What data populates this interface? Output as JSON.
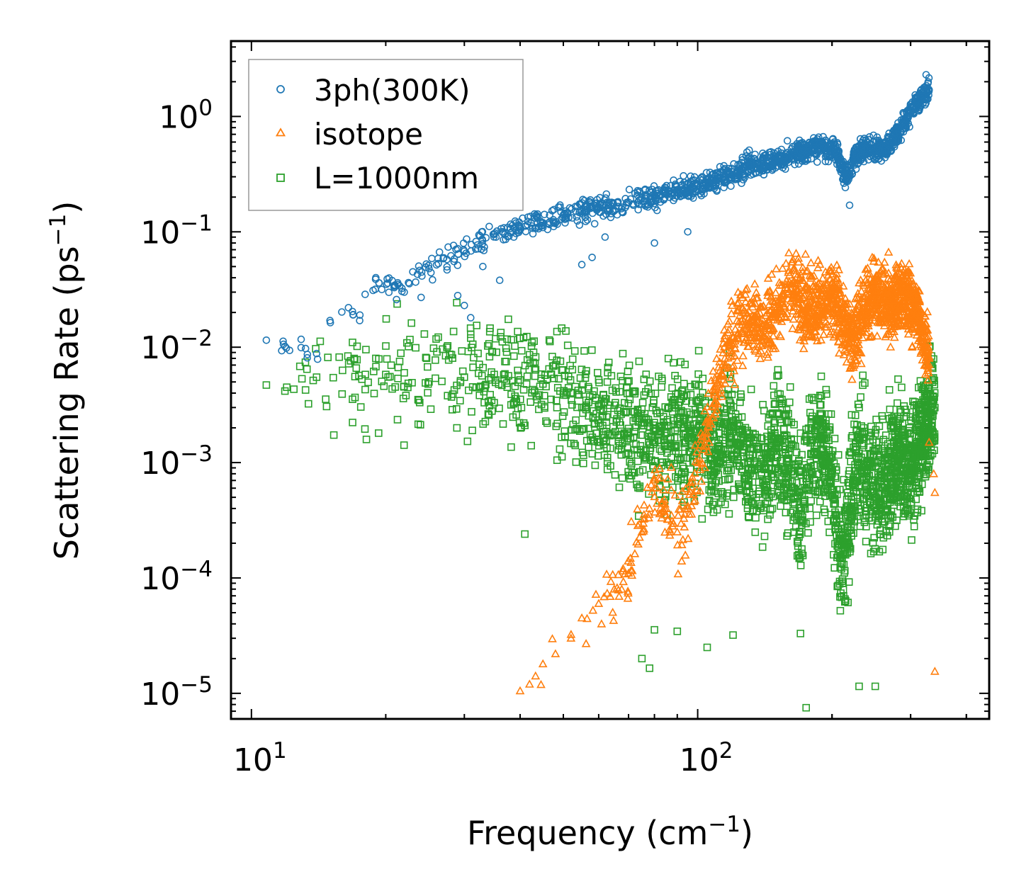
{
  "chart_data": {
    "type": "scatter",
    "xscale": "log",
    "yscale": "log",
    "xlim": [
      9,
      450
    ],
    "ylim": [
      6e-06,
      4.5
    ],
    "xlabel": "Frequency (cm",
    "xlabel_sup": "−1",
    "xlabel_end": ")",
    "ylabel": "Scattering Rate (ps",
    "ylabel_sup": "−1",
    "ylabel_end": ")",
    "x_ticks": [
      {
        "value": 10,
        "base": "10",
        "exp": "1"
      },
      {
        "value": 100,
        "base": "10",
        "exp": "2"
      }
    ],
    "y_ticks": [
      {
        "value": 1,
        "base": "10",
        "exp": "0"
      },
      {
        "value": 0.1,
        "base": "10",
        "exp": "−1"
      },
      {
        "value": 0.01,
        "base": "10",
        "exp": "−2"
      },
      {
        "value": 0.001,
        "base": "10",
        "exp": "−3"
      },
      {
        "value": 0.0001,
        "base": "10",
        "exp": "−4"
      },
      {
        "value": 1e-05,
        "base": "10",
        "exp": "−5"
      }
    ],
    "legend_position": "top-left",
    "series": [
      {
        "name": "3ph(300K)",
        "marker": "circle",
        "color": "#1f77b4",
        "trend": [
          [
            10.8,
            0.0115
          ],
          [
            11.8,
            0.0106
          ],
          [
            14,
            0.0088
          ],
          [
            15,
            0.017
          ],
          [
            16.5,
            0.022
          ],
          [
            17.5,
            0.019
          ],
          [
            19,
            0.04
          ],
          [
            21,
            0.034
          ],
          [
            22,
            0.03
          ],
          [
            23,
            0.045
          ],
          [
            25,
            0.048
          ],
          [
            28,
            0.062
          ],
          [
            30,
            0.068
          ],
          [
            35,
            0.095
          ],
          [
            40,
            0.11
          ],
          [
            45,
            0.12
          ],
          [
            50,
            0.14
          ],
          [
            55,
            0.15
          ],
          [
            60,
            0.16
          ],
          [
            70,
            0.18
          ],
          [
            80,
            0.2
          ],
          [
            90,
            0.23
          ],
          [
            100,
            0.25
          ],
          [
            115,
            0.3
          ],
          [
            130,
            0.37
          ],
          [
            150,
            0.42
          ],
          [
            170,
            0.5
          ],
          [
            190,
            0.55
          ],
          [
            205,
            0.48
          ],
          [
            215,
            0.3
          ],
          [
            225,
            0.45
          ],
          [
            240,
            0.55
          ],
          [
            260,
            0.5
          ],
          [
            280,
            0.7
          ],
          [
            300,
            1.1
          ],
          [
            320,
            1.5
          ],
          [
            330,
            1.7
          ]
        ],
        "outliers": [
          [
            24,
            0.027
          ],
          [
            29,
            0.028
          ],
          [
            30,
            0.023
          ],
          [
            31,
            0.018
          ],
          [
            33,
            0.05
          ],
          [
            36,
            0.038
          ],
          [
            55,
            0.052
          ],
          [
            58,
            0.06
          ],
          [
            62,
            0.09
          ],
          [
            80,
            0.08
          ],
          [
            95,
            0.1
          ],
          [
            219,
            0.17
          ],
          [
            325,
            2.3
          ]
        ]
      },
      {
        "name": "isotope",
        "marker": "triangle",
        "color": "#ff7f0e",
        "trend": [
          [
            40,
            1.05e-05
          ],
          [
            42,
            1.2e-05
          ],
          [
            45,
            1.8e-05
          ],
          [
            48,
            2.2e-05
          ],
          [
            52,
            3e-05
          ],
          [
            55,
            4.5e-05
          ],
          [
            60,
            6e-05
          ],
          [
            65,
            8e-05
          ],
          [
            70,
            0.00011
          ],
          [
            75,
            0.00025
          ],
          [
            80,
            0.0006
          ],
          [
            85,
            0.0004
          ],
          [
            90,
            0.00025
          ],
          [
            95,
            0.0004
          ],
          [
            100,
            0.001
          ],
          [
            105,
            0.0018
          ],
          [
            110,
            0.004
          ],
          [
            115,
            0.008
          ],
          [
            120,
            0.012
          ],
          [
            130,
            0.018
          ],
          [
            140,
            0.015
          ],
          [
            150,
            0.02
          ],
          [
            160,
            0.035
          ],
          [
            175,
            0.022
          ],
          [
            190,
            0.025
          ],
          [
            200,
            0.03
          ],
          [
            210,
            0.018
          ],
          [
            220,
            0.012
          ],
          [
            235,
            0.02
          ],
          [
            250,
            0.03
          ],
          [
            270,
            0.022
          ],
          [
            290,
            0.03
          ],
          [
            310,
            0.02
          ],
          [
            330,
            0.008
          ]
        ],
        "outliers": [
          [
            340,
            1.55e-05
          ],
          [
            340,
            0.00055
          ],
          [
            338,
            0.0008
          ],
          [
            330,
            0.0015
          ]
        ]
      },
      {
        "name": "L=1000nm",
        "marker": "square",
        "color": "#2ca02c",
        "trend": [
          [
            10.8,
            0.0047
          ],
          [
            12,
            0.0045
          ],
          [
            14,
            0.0055
          ],
          [
            16,
            0.0063
          ],
          [
            18,
            0.0058
          ],
          [
            20,
            0.0058
          ],
          [
            22,
            0.006
          ],
          [
            25,
            0.005
          ],
          [
            30,
            0.0055
          ],
          [
            35,
            0.0058
          ],
          [
            40,
            0.0052
          ],
          [
            45,
            0.0048
          ],
          [
            50,
            0.004
          ],
          [
            55,
            0.003
          ],
          [
            60,
            0.0022
          ],
          [
            70,
            0.0018
          ],
          [
            80,
            0.0015
          ],
          [
            90,
            0.002
          ],
          [
            100,
            0.0016
          ],
          [
            110,
            0.0012
          ],
          [
            120,
            0.002
          ],
          [
            130,
            0.001
          ],
          [
            140,
            0.0007
          ],
          [
            150,
            0.0015
          ],
          [
            160,
            0.0009
          ],
          [
            170,
            0.0004
          ],
          [
            180,
            0.0012
          ],
          [
            190,
            0.0016
          ],
          [
            200,
            0.0008
          ],
          [
            210,
            0.00012
          ],
          [
            220,
            0.0004
          ],
          [
            230,
            0.0012
          ],
          [
            240,
            0.0008
          ],
          [
            260,
            0.0006
          ],
          [
            280,
            0.0012
          ],
          [
            300,
            0.0009
          ],
          [
            320,
            0.002
          ],
          [
            340,
            0.003
          ]
        ],
        "outliers": [
          [
            31,
            0.012
          ],
          [
            41,
            0.00024
          ],
          [
            41,
            0.0021
          ],
          [
            46,
            0.0022
          ],
          [
            60,
            0.0052
          ],
          [
            75,
            2e-05
          ],
          [
            78,
            1.65e-05
          ],
          [
            80,
            3.55e-05
          ],
          [
            90,
            3.45e-05
          ],
          [
            105,
            2.5e-05
          ],
          [
            120,
            3.2e-05
          ],
          [
            170,
            3.3e-05
          ],
          [
            175,
            7.5e-06
          ],
          [
            230,
            1.15e-05
          ],
          [
            250,
            1.15e-05
          ]
        ]
      }
    ]
  }
}
